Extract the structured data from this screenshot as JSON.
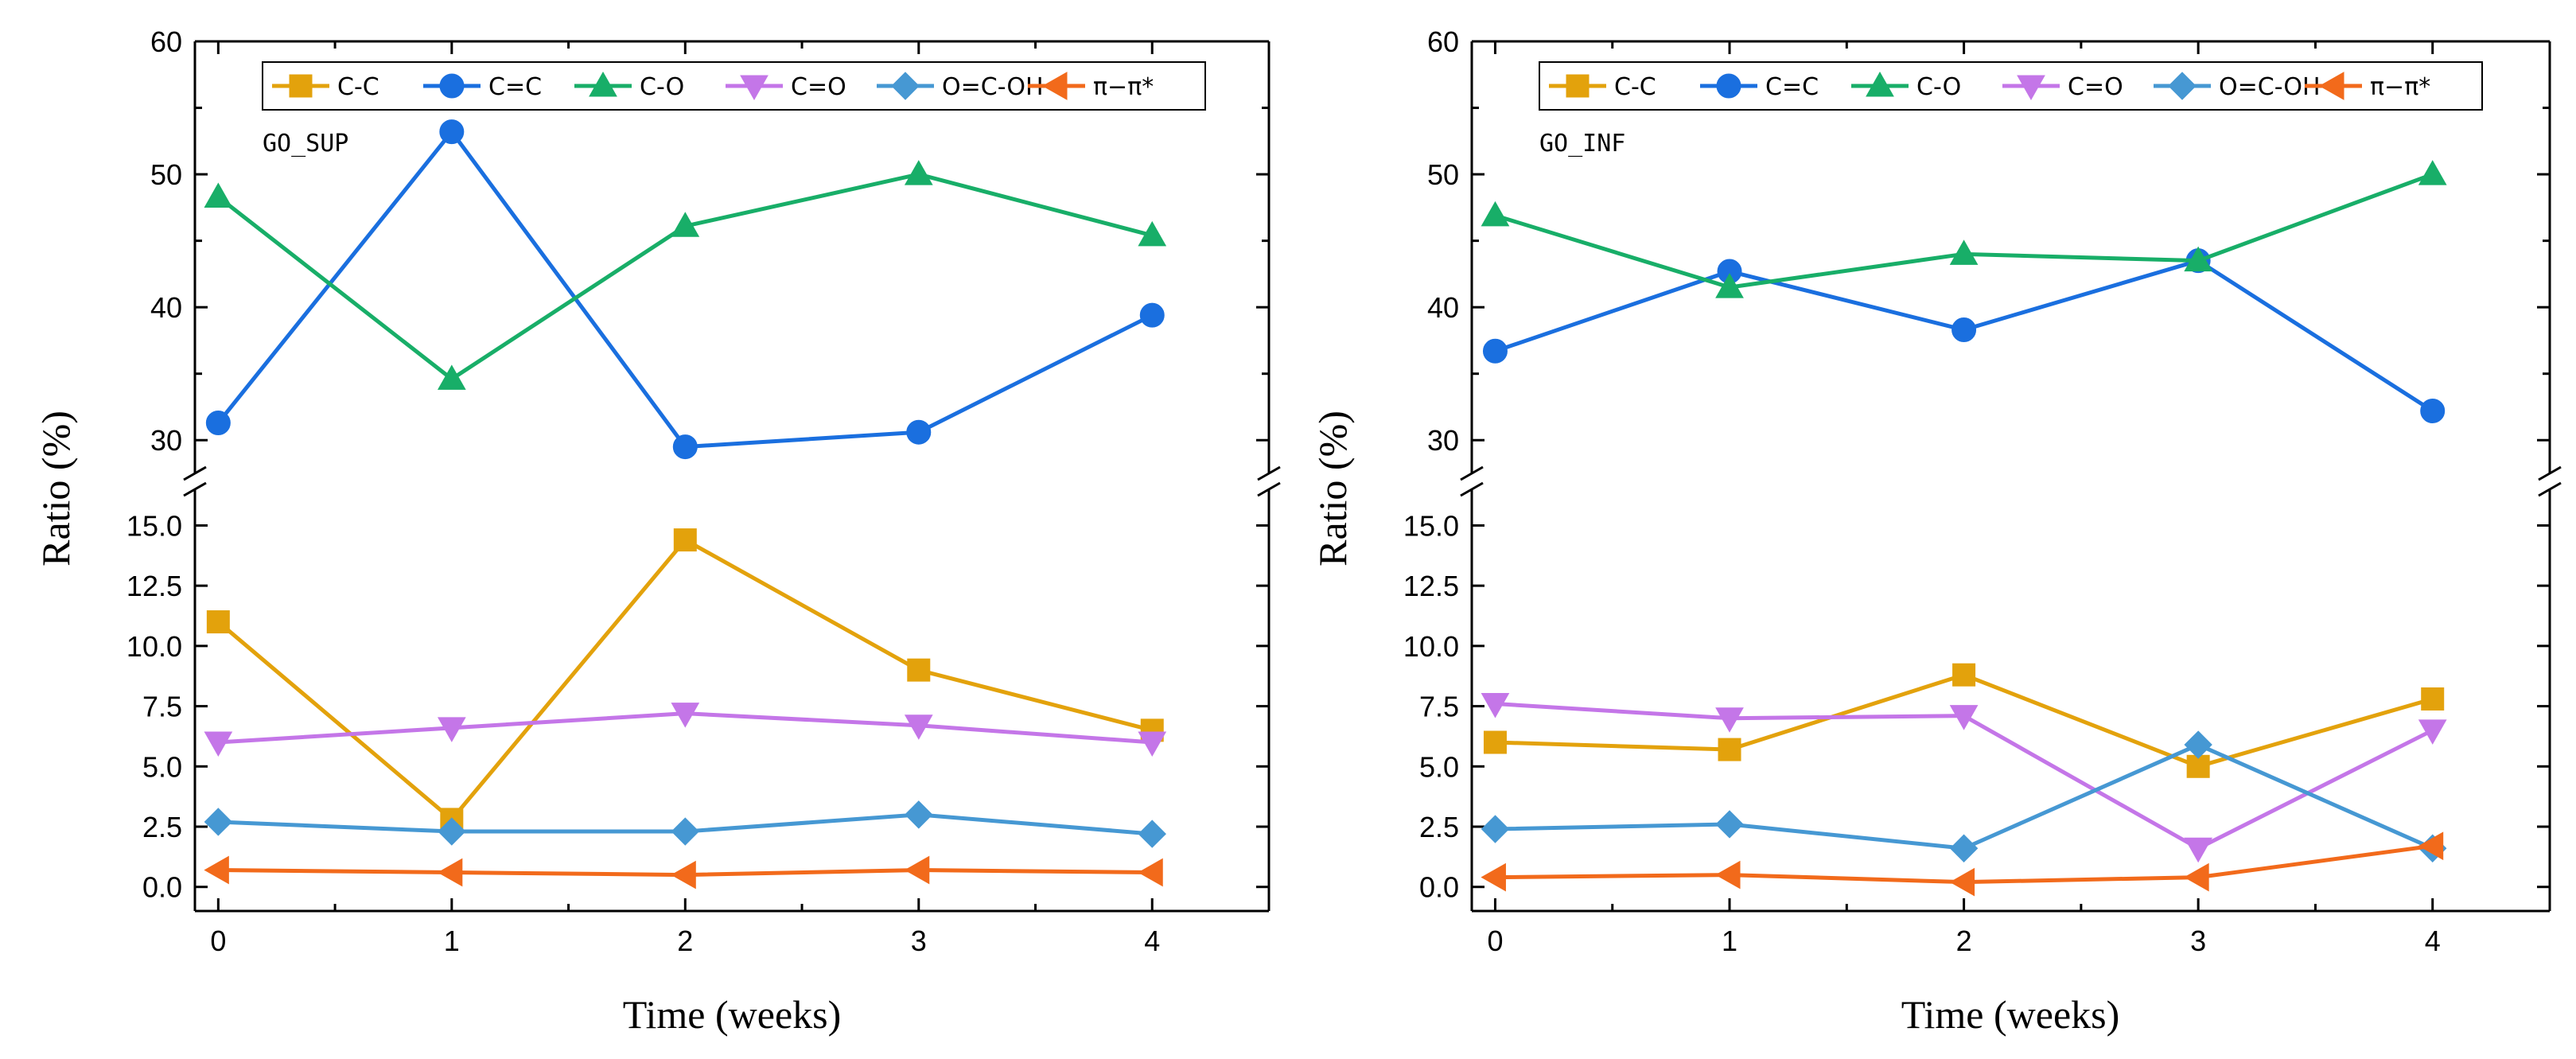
{
  "chart_data": [
    {
      "type": "line",
      "label": "GO_SUP",
      "xlabel": "Time (weeks)",
      "ylabel": "Ratio (%)",
      "x": [
        0,
        1,
        2,
        3,
        4
      ],
      "xlim": [
        -0.1,
        4.5
      ],
      "x_ticks": [
        "0",
        "1",
        "2",
        "3",
        "4"
      ],
      "y_break": {
        "lower_range": [
          -1,
          16.5
        ],
        "upper_range": [
          27.5,
          60
        ]
      },
      "y_ticks_lower": [
        "0.0",
        "2.5",
        "5.0",
        "7.5",
        "10.0",
        "12.5",
        "15.0"
      ],
      "y_ticks_upper": [
        "30",
        "40",
        "50",
        "60"
      ],
      "legend_position": "top",
      "series": [
        {
          "name": "C-C",
          "color": "#E3A20C",
          "marker": "square",
          "values": [
            11.0,
            2.8,
            14.4,
            9.0,
            6.5
          ]
        },
        {
          "name": "C=C",
          "color": "#1A6FDF",
          "marker": "circle",
          "values": [
            31.3,
            53.2,
            29.5,
            30.6,
            39.4
          ]
        },
        {
          "name": "C-O",
          "color": "#18AE68",
          "marker": "triangle-up",
          "values": [
            48.3,
            34.6,
            46.1,
            50.0,
            45.4
          ]
        },
        {
          "name": "C=O",
          "color": "#C476E8",
          "marker": "triangle-down",
          "values": [
            6.0,
            6.6,
            7.2,
            6.7,
            6.0
          ]
        },
        {
          "name": "O=C-OH",
          "color": "#4698D3",
          "marker": "diamond",
          "values": [
            2.7,
            2.3,
            2.3,
            3.0,
            2.2
          ]
        },
        {
          "name": "π−π*",
          "color": "#F26A1B",
          "marker": "triangle-left",
          "values": [
            0.7,
            0.6,
            0.5,
            0.7,
            0.6
          ]
        }
      ]
    },
    {
      "type": "line",
      "label": "GO_INF",
      "xlabel": "Time (weeks)",
      "ylabel": "Ratio (%)",
      "x": [
        0,
        1,
        2,
        3,
        4
      ],
      "xlim": [
        -0.1,
        4.5
      ],
      "x_ticks": [
        "0",
        "1",
        "2",
        "3",
        "4"
      ],
      "y_break": {
        "lower_range": [
          -1,
          16.5
        ],
        "upper_range": [
          27.5,
          60
        ]
      },
      "y_ticks_lower": [
        "0.0",
        "2.5",
        "5.0",
        "7.5",
        "10.0",
        "12.5",
        "15.0"
      ],
      "y_ticks_upper": [
        "30",
        "40",
        "50",
        "60"
      ],
      "legend_position": "top",
      "series": [
        {
          "name": "C-C",
          "color": "#E3A20C",
          "marker": "square",
          "values": [
            6.0,
            5.7,
            8.8,
            5.0,
            7.8
          ]
        },
        {
          "name": "C=C",
          "color": "#1A6FDF",
          "marker": "circle",
          "values": [
            36.7,
            42.7,
            38.3,
            43.5,
            32.2
          ]
        },
        {
          "name": "C-O",
          "color": "#18AE68",
          "marker": "triangle-up",
          "values": [
            46.9,
            41.5,
            44.0,
            43.5,
            50.0
          ]
        },
        {
          "name": "C=O",
          "color": "#C476E8",
          "marker": "triangle-down",
          "values": [
            7.6,
            7.0,
            7.1,
            1.6,
            6.5
          ]
        },
        {
          "name": "O=C-OH",
          "color": "#4698D3",
          "marker": "diamond",
          "values": [
            2.4,
            2.6,
            1.6,
            5.9,
            1.6
          ]
        },
        {
          "name": "π−π*",
          "color": "#F26A1B",
          "marker": "triangle-left",
          "values": [
            0.4,
            0.5,
            0.2,
            0.4,
            1.7
          ]
        }
      ]
    }
  ]
}
